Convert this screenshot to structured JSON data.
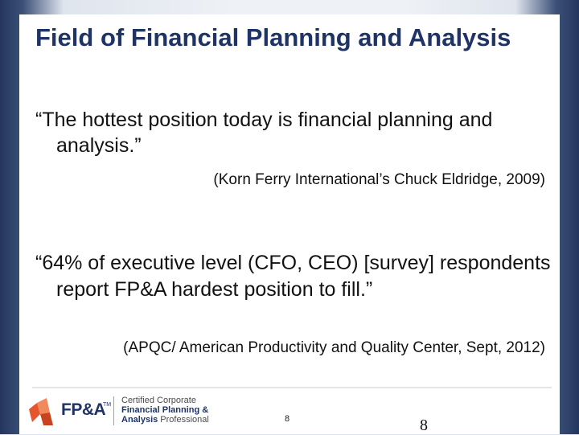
{
  "slide": {
    "title": "Field of Financial Planning and Analysis",
    "quote1": "“The hottest position today is financial planning and analysis.”",
    "cite1": "(Korn Ferry International’s Chuck Eldridge, 2009)",
    "quote2": "“64% of executive level (CFO, CEO) [survey] respondents report FP&A hardest position to fill.”",
    "cite2": "(APQC/ American Productivity and Quality Center, Sept, 2012)"
  },
  "footer": {
    "logo_text": "FP&A",
    "logo_tm": "TM",
    "cert_line1": "Certified Corporate",
    "cert_line2": "Financial Planning &",
    "cert_line3a": "Analysis",
    "cert_line3b": " Professional",
    "small_page_number": "8",
    "page_number": "8",
    "logo_icon": "fpa-logo-icon",
    "colors": {
      "brand_navy": "#1f3464",
      "brand_orange": "#e4572e"
    }
  }
}
